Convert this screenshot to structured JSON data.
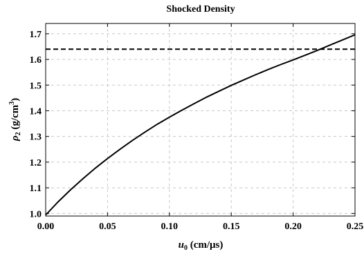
{
  "chart_data": {
    "type": "line",
    "title": "Shocked Density",
    "xlabel": {
      "sym": "u",
      "sub": "0",
      "unit": " (cm/μs)"
    },
    "ylabel": {
      "sym": "ρ",
      "sub": "2",
      "unit_pre": " (g/cm",
      "sup": "3",
      "unit_post": ")"
    },
    "xlim": [
      0.0,
      0.25
    ],
    "ylim": [
      0.99,
      1.74
    ],
    "xticks": [
      0.0,
      0.05,
      0.1,
      0.15,
      0.2,
      0.25
    ],
    "xtick_labels": [
      "0.00",
      "0.05",
      "0.10",
      "0.15",
      "0.20",
      "0.25"
    ],
    "yticks": [
      1.0,
      1.1,
      1.2,
      1.3,
      1.4,
      1.5,
      1.6,
      1.7
    ],
    "ytick_labels": [
      "1.0",
      "1.1",
      "1.2",
      "1.3",
      "1.4",
      "1.5",
      "1.6",
      "1.7"
    ],
    "grid": true,
    "series": [
      {
        "style": "solid",
        "color": "#000000",
        "x": [
          0.0,
          0.01,
          0.02,
          0.03,
          0.04,
          0.05,
          0.06,
          0.07,
          0.08,
          0.09,
          0.1,
          0.11,
          0.12,
          0.13,
          0.14,
          0.15,
          0.16,
          0.17,
          0.18,
          0.19,
          0.2,
          0.21,
          0.22,
          0.23,
          0.24,
          0.25
        ],
        "y": [
          0.994,
          1.045,
          1.092,
          1.135,
          1.176,
          1.214,
          1.25,
          1.284,
          1.316,
          1.347,
          1.375,
          1.402,
          1.428,
          1.453,
          1.476,
          1.499,
          1.52,
          1.541,
          1.561,
          1.58,
          1.598,
          1.617,
          1.636,
          1.656,
          1.676,
          1.696
        ]
      },
      {
        "style": "dashed",
        "color": "#000000",
        "x": [
          0.0,
          0.25
        ],
        "y": [
          1.64,
          1.64
        ]
      }
    ]
  }
}
